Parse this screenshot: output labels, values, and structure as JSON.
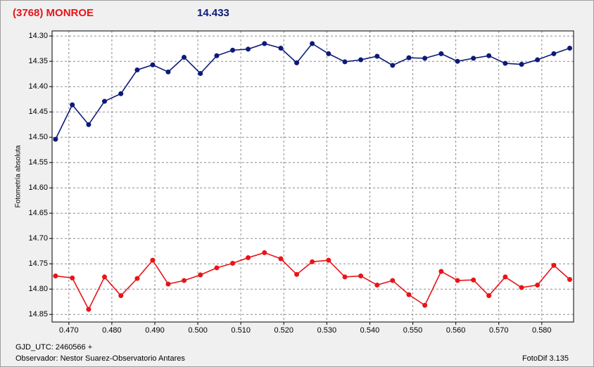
{
  "chart_data": {
    "type": "line",
    "title": "(3768) MONROE",
    "subtitle": "14.433",
    "y_label": "Fotometría absoluta",
    "x_label": "GJD_UTC: 2460566 +",
    "observer": "Observador: Nestor Suarez-Observatorio Antares",
    "software": "FotoDif 3.135",
    "grid": true,
    "y_inverted": true,
    "x": [
      0.4669,
      0.4708,
      0.4746,
      0.4783,
      0.4821,
      0.4859,
      0.4895,
      0.4931,
      0.4968,
      0.5006,
      0.5044,
      0.5081,
      0.5117,
      0.5155,
      0.5193,
      0.523,
      0.5266,
      0.5304,
      0.5342,
      0.5379,
      0.5417,
      0.5453,
      0.5491,
      0.5528,
      0.5566,
      0.5604,
      0.5641,
      0.5677,
      0.5715,
      0.5753,
      0.579,
      0.5828,
      0.5865
    ],
    "series": [
      {
        "color": "#0c1a78",
        "values": [
          14.504,
          14.436,
          14.475,
          14.429,
          14.414,
          14.367,
          14.357,
          14.371,
          14.342,
          14.374,
          14.339,
          14.328,
          14.326,
          14.315,
          14.324,
          14.353,
          14.315,
          14.335,
          14.351,
          14.347,
          14.34,
          14.358,
          14.343,
          14.344,
          14.335,
          14.35,
          14.344,
          14.339,
          14.354,
          14.356,
          14.347,
          14.335,
          14.324
        ]
      },
      {
        "color": "#e81419",
        "values": [
          14.774,
          14.778,
          14.84,
          14.776,
          14.813,
          14.779,
          14.743,
          14.79,
          14.783,
          14.772,
          14.758,
          14.749,
          14.738,
          14.728,
          14.74,
          14.771,
          14.746,
          14.743,
          14.776,
          14.774,
          14.792,
          14.783,
          14.811,
          14.832,
          14.765,
          14.783,
          14.782,
          14.813,
          14.776,
          14.797,
          14.792,
          14.753,
          14.781
        ]
      }
    ],
    "xlim": [
      0.4661,
      0.5874
    ],
    "ylim": [
      14.29,
      14.865
    ],
    "xticks": [
      {
        "value": 0.47,
        "label": "0.470"
      },
      {
        "value": 0.48,
        "label": "0.480"
      },
      {
        "value": 0.49,
        "label": "0.490"
      },
      {
        "value": 0.5,
        "label": "0.500"
      },
      {
        "value": 0.51,
        "label": "0.510"
      },
      {
        "value": 0.52,
        "label": "0.520"
      },
      {
        "value": 0.53,
        "label": "0.530"
      },
      {
        "value": 0.54,
        "label": "0.540"
      },
      {
        "value": 0.55,
        "label": "0.550"
      },
      {
        "value": 0.56,
        "label": "0.560"
      },
      {
        "value": 0.57,
        "label": "0.570"
      },
      {
        "value": 0.58,
        "label": "0.580"
      }
    ],
    "yticks": [
      {
        "value": 14.3,
        "label": "14.30"
      },
      14.35,
      {
        "value": 14.4,
        "label": "14.40"
      },
      14.45,
      {
        "value": 14.5,
        "label": "14.50"
      },
      14.55,
      {
        "value": 14.6,
        "label": "14.60"
      },
      14.65,
      {
        "value": 14.7,
        "label": "14.70"
      },
      14.75,
      {
        "value": 14.8,
        "label": "14.80"
      },
      14.85
    ]
  }
}
